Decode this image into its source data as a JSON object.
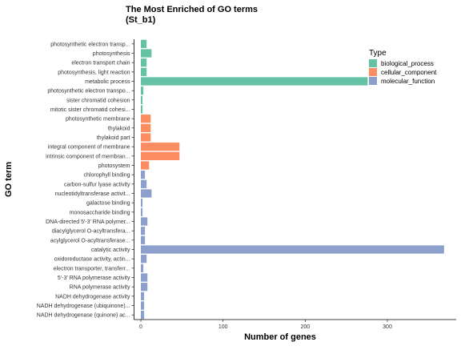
{
  "chart_data": {
    "type": "bar",
    "orientation": "horizontal",
    "title": "The Most Enriched of GO terms",
    "subtitle": "(St_b1)",
    "xlabel": "Number of genes",
    "ylabel": "GO term",
    "xlim": [
      -18,
      380
    ],
    "xticks": [
      0,
      100,
      200,
      300
    ],
    "grid": false,
    "legend": {
      "title": "Type",
      "position": "right",
      "entries": [
        {
          "name": "biological_process",
          "color": "#66c2a5"
        },
        {
          "name": "cellular_component",
          "color": "#fc8d62"
        },
        {
          "name": "molecular_function",
          "color": "#8da0cb"
        }
      ]
    },
    "categories": [
      "photosynthetic electron transp...",
      "photosynthesis",
      "electron transport chain",
      "photosynthesis, light reaction",
      "metabolic process",
      "photosynthetic electron transpo...",
      "sister chromatid cohesion",
      "mitotic sister chromatid cohesi...",
      "photosynthetic membrane",
      "thylakoid",
      "thylakoid part",
      "integral component of membrane",
      "intrinsic component of membran...",
      "photosystem",
      "chlorophyll binding",
      "carbon-sulfur lyase activity",
      "nucleotidyltransferase activit...",
      "galactose binding",
      "monosaccharide binding",
      "DNA-directed 5'-3' RNA polymer...",
      "diacylglycerol O-acyltransfera...",
      "acylglycerol O-acyltransferase...",
      "catalytic activity",
      "oxidoreductase activity, actin...",
      "electron transporter, transferr...",
      "5'-3' RNA polymerase activity",
      "RNA polymerase activity",
      "NADH dehydrogenase activity",
      "NADH dehydrogenase (ubiquinone)...",
      "NADH dehydrogenase (quinone) ac..."
    ],
    "series_index": [
      0,
      0,
      0,
      0,
      0,
      0,
      0,
      0,
      1,
      1,
      1,
      1,
      1,
      1,
      2,
      2,
      2,
      2,
      2,
      2,
      2,
      2,
      2,
      2,
      2,
      2,
      2,
      2,
      2,
      2
    ],
    "values": [
      7,
      13,
      7,
      7,
      276,
      3,
      2,
      2,
      12,
      12,
      12,
      47,
      47,
      10,
      5,
      7,
      13,
      2,
      2,
      8,
      5,
      5,
      369,
      7,
      3,
      8,
      8,
      4,
      4,
      4
    ]
  }
}
